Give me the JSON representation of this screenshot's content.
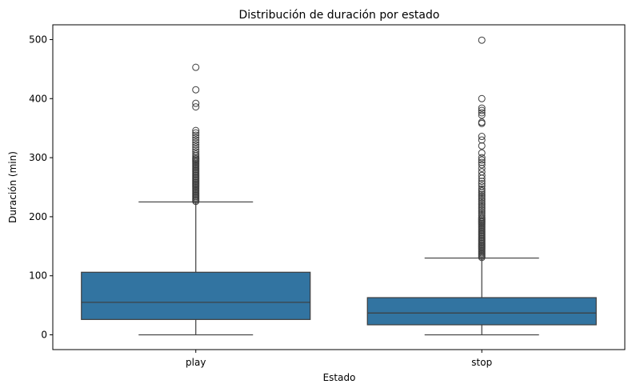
{
  "chart_data": {
    "type": "box",
    "title": "Distribución de duración por estado",
    "xlabel": "Estado",
    "ylabel": "Duración (min)",
    "categories": [
      "play",
      "stop"
    ],
    "ylim": [
      -25,
      525
    ],
    "yticks": [
      0,
      100,
      200,
      300,
      400,
      500
    ],
    "grid": false,
    "box_color": "#3274a1",
    "line_color": "#3d3d3d",
    "boxes": [
      {
        "category": "play",
        "whisker_low": 0,
        "q1": 26,
        "median": 55,
        "q3": 106,
        "whisker_high": 225,
        "outliers": [
          226,
          228,
          230,
          232,
          234,
          236,
          238,
          240,
          242,
          244,
          246,
          248,
          250,
          252,
          254,
          256,
          258,
          260,
          262,
          264,
          266,
          268,
          270,
          272,
          274,
          276,
          278,
          280,
          282,
          284,
          286,
          288,
          290,
          292,
          294,
          296,
          298,
          300,
          303,
          306,
          310,
          314,
          318,
          322,
          326,
          330,
          334,
          338,
          342,
          346,
          386,
          392,
          415,
          453
        ]
      },
      {
        "category": "stop",
        "whisker_low": 0,
        "q1": 17,
        "median": 37,
        "q3": 63,
        "whisker_high": 130,
        "outliers": [
          131,
          133,
          135,
          137,
          139,
          141,
          143,
          145,
          147,
          149,
          151,
          153,
          155,
          157,
          159,
          161,
          163,
          165,
          167,
          169,
          171,
          173,
          175,
          177,
          179,
          181,
          183,
          185,
          187,
          189,
          191,
          193,
          195,
          197,
          199,
          202,
          205,
          208,
          211,
          214,
          217,
          220,
          223,
          226,
          229,
          232,
          235,
          238,
          241,
          244,
          247,
          252,
          256,
          260,
          265,
          270,
          276,
          282,
          288,
          292,
          296,
          300,
          308,
          320,
          330,
          336,
          358,
          360,
          372,
          376,
          380,
          384,
          400,
          499
        ]
      }
    ]
  }
}
